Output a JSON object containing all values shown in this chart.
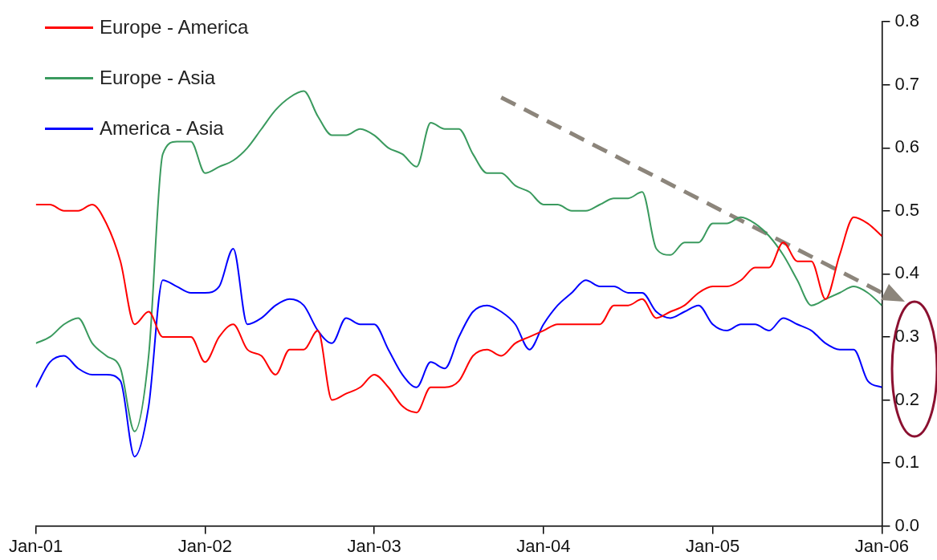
{
  "chart_data": {
    "type": "line",
    "legend": "top left",
    "grid": false,
    "marker": "none",
    "line_style": "solid",
    "x": [
      "2001-01",
      "2001-02",
      "2001-03",
      "2001-04",
      "2001-05",
      "2001-06",
      "2001-07",
      "2001-08",
      "2001-09",
      "2001-10",
      "2001-11",
      "2001-12",
      "2002-01",
      "2002-02",
      "2002-03",
      "2002-04",
      "2002-05",
      "2002-06",
      "2002-07",
      "2002-08",
      "2002-09",
      "2002-10",
      "2002-11",
      "2002-12",
      "2003-01",
      "2003-02",
      "2003-03",
      "2003-04",
      "2003-05",
      "2003-06",
      "2003-07",
      "2003-08",
      "2003-09",
      "2003-10",
      "2003-11",
      "2003-12",
      "2004-01",
      "2004-02",
      "2004-03",
      "2004-04",
      "2004-05",
      "2004-06",
      "2004-07",
      "2004-08",
      "2004-09",
      "2004-10",
      "2004-11",
      "2004-12",
      "2005-01",
      "2005-02",
      "2005-03",
      "2005-04",
      "2005-05",
      "2005-06",
      "2005-07",
      "2005-08",
      "2005-09",
      "2005-10",
      "2005-11",
      "2005-12",
      "2006-01"
    ],
    "series": [
      {
        "name": "Europe - America",
        "color": "#ff0000",
        "values": [
          0.51,
          0.51,
          0.5,
          0.5,
          0.51,
          0.48,
          0.42,
          0.32,
          0.34,
          0.3,
          0.3,
          0.3,
          0.26,
          0.3,
          0.32,
          0.28,
          0.27,
          0.24,
          0.28,
          0.28,
          0.31,
          0.2,
          0.21,
          0.22,
          0.24,
          0.22,
          0.19,
          0.18,
          0.22,
          0.22,
          0.23,
          0.27,
          0.28,
          0.27,
          0.29,
          0.3,
          0.31,
          0.32,
          0.32,
          0.32,
          0.32,
          0.35,
          0.35,
          0.36,
          0.33,
          0.34,
          0.35,
          0.37,
          0.38,
          0.38,
          0.39,
          0.41,
          0.41,
          0.45,
          0.42,
          0.42,
          0.36,
          0.43,
          0.49,
          0.48,
          0.46
        ]
      },
      {
        "name": "Europe - Asia",
        "color": "#3a9a5e",
        "values": [
          0.29,
          0.3,
          0.32,
          0.33,
          0.29,
          0.27,
          0.25,
          0.15,
          0.27,
          0.59,
          0.61,
          0.61,
          0.56,
          0.57,
          0.58,
          0.6,
          0.63,
          0.66,
          0.68,
          0.69,
          0.65,
          0.62,
          0.62,
          0.63,
          0.62,
          0.6,
          0.59,
          0.57,
          0.64,
          0.63,
          0.63,
          0.59,
          0.56,
          0.56,
          0.54,
          0.53,
          0.51,
          0.51,
          0.5,
          0.5,
          0.51,
          0.52,
          0.52,
          0.53,
          0.44,
          0.43,
          0.45,
          0.45,
          0.48,
          0.48,
          0.49,
          0.48,
          0.46,
          0.43,
          0.39,
          0.35,
          0.36,
          0.37,
          0.38,
          0.37,
          0.35
        ]
      },
      {
        "type": "line",
        "line_style": "dashed",
        "color": "#8c857b",
        "x": [
          "2003-10",
          "2006-01"
        ],
        "values": [
          0.68,
          0.37
        ]
      },
      {
        "name": "America - Asia",
        "color": "#0000ff",
        "values": [
          0.22,
          0.26,
          0.27,
          0.25,
          0.24,
          0.24,
          0.23,
          0.11,
          0.19,
          0.39,
          0.38,
          0.37,
          0.37,
          0.38,
          0.44,
          0.32,
          0.33,
          0.35,
          0.36,
          0.35,
          0.31,
          0.29,
          0.33,
          0.32,
          0.32,
          0.28,
          0.24,
          0.22,
          0.26,
          0.25,
          0.3,
          0.34,
          0.35,
          0.34,
          0.32,
          0.28,
          0.32,
          0.35,
          0.37,
          0.39,
          0.38,
          0.38,
          0.37,
          0.37,
          0.34,
          0.33,
          0.34,
          0.35,
          0.32,
          0.31,
          0.32,
          0.32,
          0.31,
          0.33,
          0.32,
          0.31,
          0.29,
          0.28,
          0.28,
          0.23,
          0.22
        ]
      }
    ],
    "xlim": [
      "2001-01",
      "2006-01"
    ],
    "xticks": [
      {
        "value": "2001-01",
        "label": "Jan-01"
      },
      {
        "value": "2002-01",
        "label": "Jan-02"
      },
      {
        "value": "2003-01",
        "label": "Jan-03"
      },
      {
        "value": "2004-01",
        "label": "Jan-04"
      },
      {
        "value": "2005-01",
        "label": "Jan-05"
      },
      {
        "value": "2006-01",
        "label": "Jan-06"
      }
    ],
    "ylim": [
      0,
      0.8
    ],
    "yticks": [
      {
        "value": 0,
        "label": "0.0"
      },
      0.1,
      0.2,
      0.3,
      0.4,
      0.5,
      0.6,
      0.7,
      0.8
    ]
  }
}
